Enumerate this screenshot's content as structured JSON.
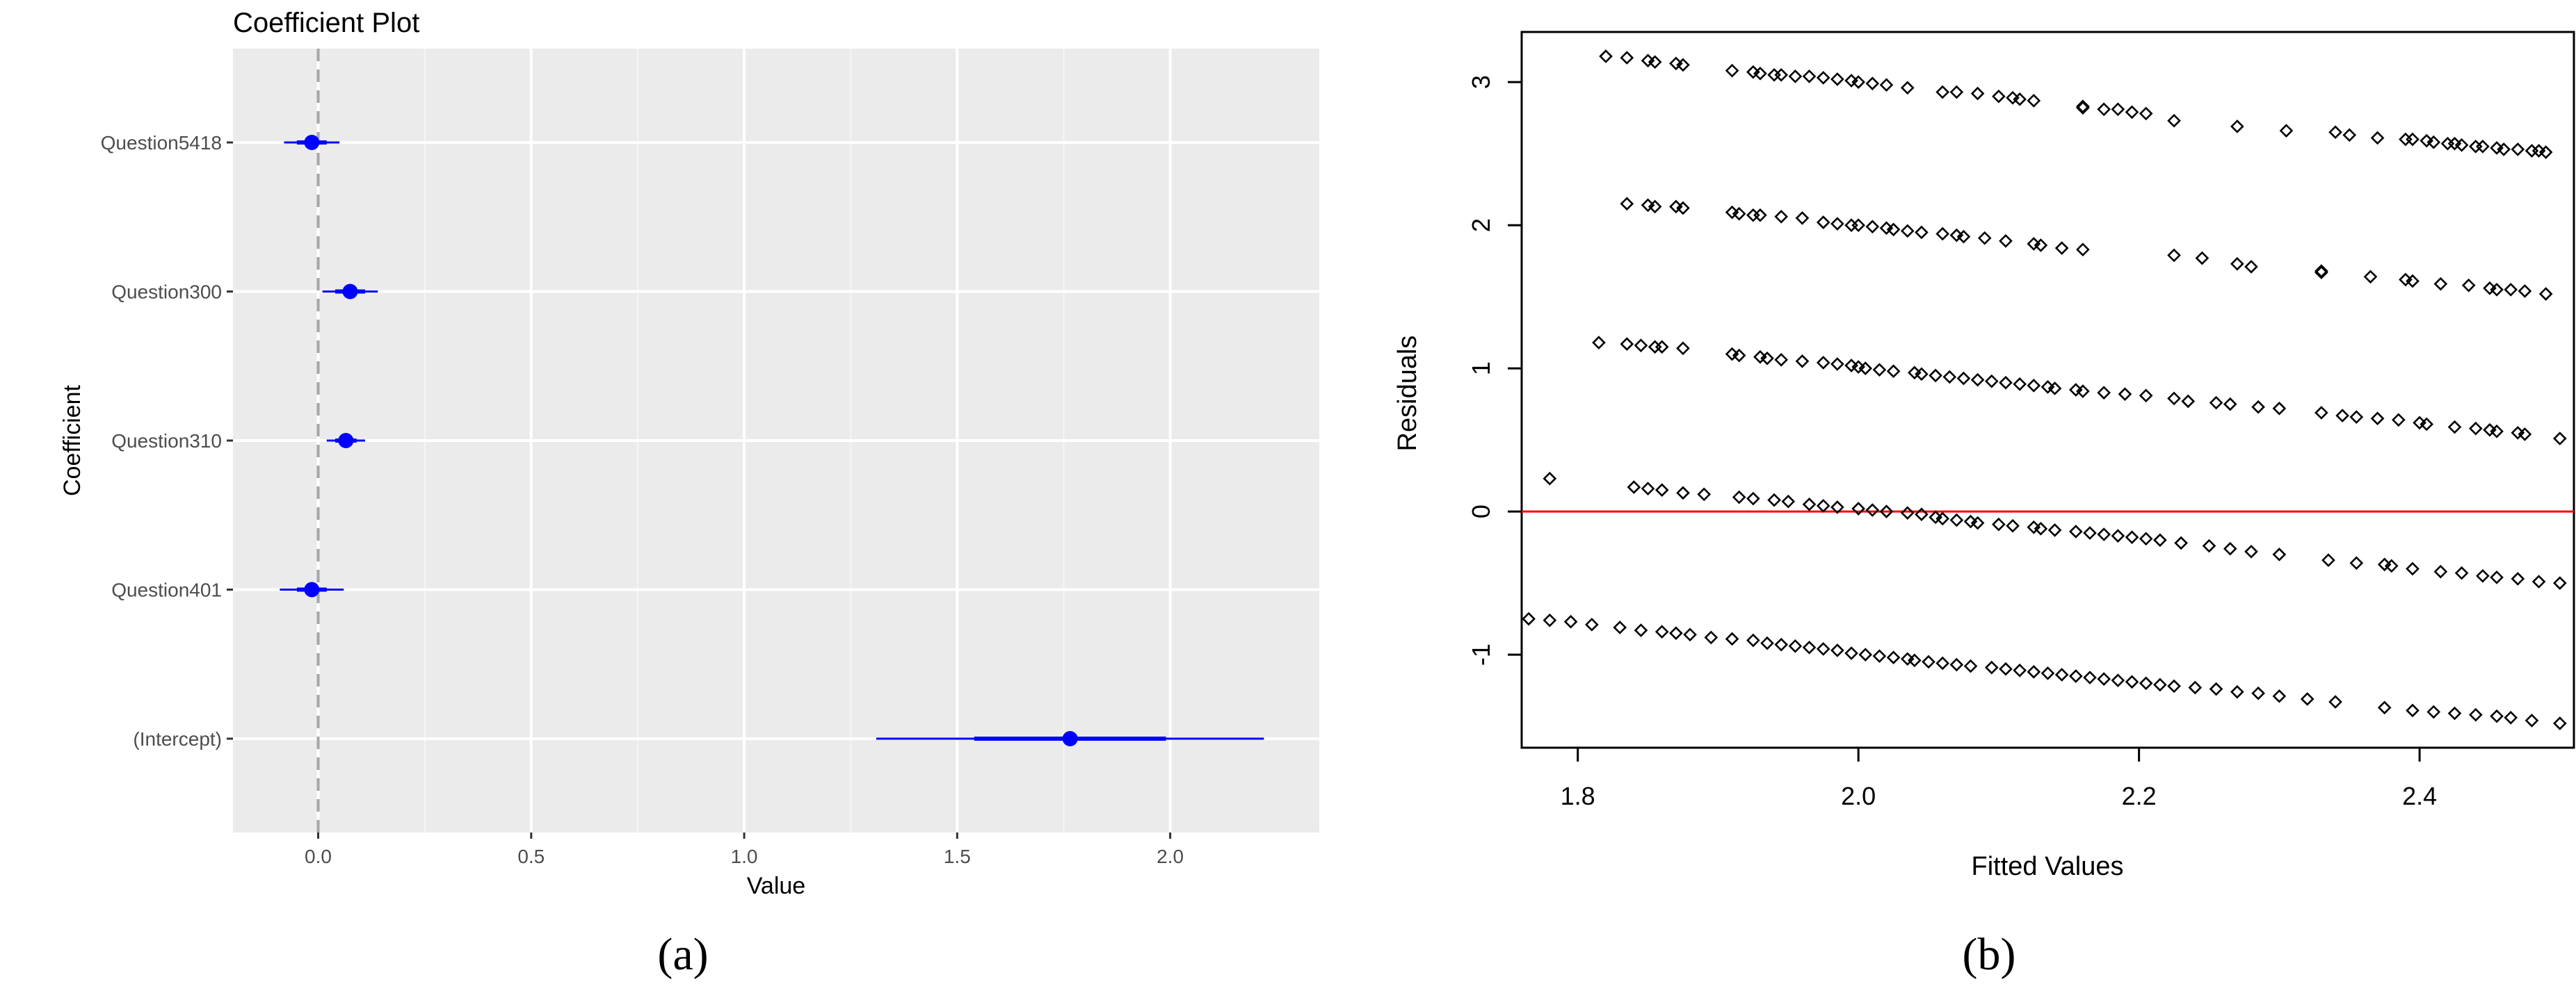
{
  "chart_data": [
    {
      "type": "coefficient",
      "title": "Coefficient Plot",
      "xlabel": "Value",
      "ylabel": "Coefficient",
      "xlim": [
        -0.2,
        2.35
      ],
      "xticks": [
        0.0,
        0.5,
        1.0,
        1.5,
        2.0
      ],
      "xtick_labels": [
        "0.0",
        "0.5",
        "1.0",
        "1.5",
        "2.0"
      ],
      "reference_line": 0,
      "grid": true,
      "coefficients": [
        {
          "name": "Question5418",
          "estimate": -0.015,
          "inner": [
            -0.05,
            0.02
          ],
          "outer": [
            -0.08,
            0.05
          ]
        },
        {
          "name": "Question300",
          "estimate": 0.075,
          "inner": [
            0.04,
            0.11
          ],
          "outer": [
            0.01,
            0.14
          ]
        },
        {
          "name": "Question310",
          "estimate": 0.065,
          "inner": [
            0.04,
            0.09
          ],
          "outer": [
            0.02,
            0.11
          ]
        },
        {
          "name": "Question401",
          "estimate": -0.015,
          "inner": [
            -0.05,
            0.02
          ],
          "outer": [
            -0.09,
            0.06
          ]
        },
        {
          "name": "(Intercept)",
          "estimate": 1.765,
          "inner": [
            1.54,
            1.99
          ],
          "outer": [
            1.31,
            2.22
          ]
        }
      ],
      "colors": {
        "points": "#0000ff",
        "background": "#ebebeb",
        "grid": "#ffffff",
        "reference": "#a6a6a6"
      },
      "panel_label": "(a)"
    },
    {
      "type": "scatter",
      "xlabel": "Fitted Values",
      "ylabel": "Residuals",
      "xlim": [
        1.76,
        2.51
      ],
      "ylim": [
        -1.65,
        3.35
      ],
      "xticks": [
        1.8,
        2.0,
        2.2,
        2.4
      ],
      "xtick_labels": [
        "1.8",
        "2.0",
        "2.2",
        "2.4"
      ],
      "yticks": [
        -1,
        0,
        1,
        2,
        3
      ],
      "ytick_labels": [
        "-1",
        "0",
        "1",
        "2",
        "3"
      ],
      "reference_line": 0,
      "marker": "diamond",
      "colors": {
        "points": "#000000",
        "reference": "#ff0000"
      },
      "bands": [
        {
          "x": [
            1.82,
            1.835,
            1.85,
            1.855,
            1.87,
            1.875,
            1.91,
            1.925,
            1.93,
            1.94,
            1.945,
            1.955,
            1.965,
            1.975,
            1.985,
            1.995,
            2.0,
            2.01,
            2.02,
            2.035,
            2.06,
            2.07,
            2.085,
            2.1,
            2.11,
            2.115,
            2.125,
            2.16,
            2.16,
            2.175,
            2.185,
            2.195,
            2.205,
            2.225,
            2.27,
            2.305,
            2.34,
            2.35,
            2.37,
            2.39,
            2.395,
            2.405,
            2.41,
            2.42,
            2.425,
            2.43,
            2.44,
            2.445,
            2.455,
            2.46,
            2.47,
            2.48,
            2.485,
            2.49
          ],
          "y": [
            3.18,
            3.17,
            3.15,
            3.14,
            3.13,
            3.12,
            3.08,
            3.07,
            3.06,
            3.05,
            3.05,
            3.04,
            3.04,
            3.03,
            3.02,
            3.01,
            3.0,
            2.99,
            2.98,
            2.96,
            2.93,
            2.93,
            2.92,
            2.9,
            2.89,
            2.88,
            2.87,
            2.83,
            2.82,
            2.81,
            2.81,
            2.79,
            2.78,
            2.73,
            2.69,
            2.66,
            2.65,
            2.63,
            2.61,
            2.6,
            2.6,
            2.59,
            2.58,
            2.57,
            2.57,
            2.56,
            2.55,
            2.55,
            2.54,
            2.53,
            2.53,
            2.52,
            2.52,
            2.51
          ]
        },
        {
          "x": [
            1.835,
            1.85,
            1.855,
            1.87,
            1.875,
            1.91,
            1.915,
            1.925,
            1.93,
            1.945,
            1.96,
            1.975,
            1.985,
            1.995,
            2.0,
            2.01,
            2.02,
            2.025,
            2.035,
            2.045,
            2.06,
            2.07,
            2.075,
            2.09,
            2.105,
            2.125,
            2.13,
            2.145,
            2.16,
            2.225,
            2.245,
            2.27,
            2.28,
            2.33,
            2.33,
            2.365,
            2.39,
            2.395,
            2.415,
            2.435,
            2.45,
            2.455,
            2.465,
            2.475,
            2.49
          ],
          "y": [
            2.15,
            2.14,
            2.13,
            2.13,
            2.12,
            2.09,
            2.08,
            2.07,
            2.07,
            2.06,
            2.05,
            2.02,
            2.01,
            2.0,
            2.0,
            1.99,
            1.98,
            1.97,
            1.96,
            1.95,
            1.94,
            1.93,
            1.92,
            1.91,
            1.89,
            1.87,
            1.86,
            1.84,
            1.83,
            1.79,
            1.77,
            1.73,
            1.71,
            1.68,
            1.67,
            1.64,
            1.62,
            1.61,
            1.59,
            1.58,
            1.56,
            1.55,
            1.55,
            1.54,
            1.52
          ]
        },
        {
          "x": [
            1.815,
            1.835,
            1.845,
            1.855,
            1.86,
            1.875,
            1.91,
            1.915,
            1.93,
            1.935,
            1.945,
            1.96,
            1.975,
            1.985,
            1.995,
            2.0,
            2.005,
            2.015,
            2.025,
            2.04,
            2.045,
            2.055,
            2.065,
            2.075,
            2.085,
            2.095,
            2.105,
            2.115,
            2.125,
            2.135,
            2.14,
            2.155,
            2.16,
            2.175,
            2.19,
            2.205,
            2.225,
            2.235,
            2.255,
            2.265,
            2.285,
            2.3,
            2.33,
            2.345,
            2.355,
            2.37,
            2.385,
            2.4,
            2.405,
            2.425,
            2.44,
            2.45,
            2.455,
            2.47,
            2.475,
            2.5
          ],
          "y": [
            1.18,
            1.17,
            1.16,
            1.15,
            1.15,
            1.14,
            1.1,
            1.09,
            1.08,
            1.07,
            1.06,
            1.05,
            1.04,
            1.03,
            1.02,
            1.01,
            1.0,
            0.99,
            0.98,
            0.97,
            0.96,
            0.95,
            0.94,
            0.93,
            0.92,
            0.91,
            0.9,
            0.89,
            0.88,
            0.87,
            0.86,
            0.85,
            0.84,
            0.83,
            0.82,
            0.81,
            0.79,
            0.77,
            0.76,
            0.75,
            0.73,
            0.72,
            0.69,
            0.67,
            0.66,
            0.65,
            0.64,
            0.62,
            0.61,
            0.59,
            0.58,
            0.57,
            0.56,
            0.55,
            0.54,
            0.51
          ]
        },
        {
          "x": [
            1.78,
            1.84,
            1.85,
            1.86,
            1.875,
            1.89,
            1.915,
            1.925,
            1.94,
            1.95,
            1.965,
            1.975,
            1.985,
            2.0,
            2.01,
            2.02,
            2.035,
            2.045,
            2.055,
            2.06,
            2.07,
            2.08,
            2.085,
            2.1,
            2.11,
            2.125,
            2.13,
            2.14,
            2.155,
            2.165,
            2.175,
            2.185,
            2.195,
            2.205,
            2.215,
            2.23,
            2.25,
            2.265,
            2.28,
            2.3,
            2.335,
            2.355,
            2.375,
            2.38,
            2.395,
            2.415,
            2.43,
            2.445,
            2.455,
            2.47,
            2.485,
            2.5
          ],
          "y": [
            0.23,
            0.17,
            0.16,
            0.15,
            0.13,
            0.12,
            0.1,
            0.09,
            0.08,
            0.07,
            0.05,
            0.04,
            0.03,
            0.02,
            0.01,
            0.0,
            -0.01,
            -0.02,
            -0.04,
            -0.05,
            -0.06,
            -0.07,
            -0.08,
            -0.09,
            -0.1,
            -0.11,
            -0.12,
            -0.13,
            -0.14,
            -0.15,
            -0.16,
            -0.17,
            -0.18,
            -0.19,
            -0.2,
            -0.22,
            -0.24,
            -0.26,
            -0.28,
            -0.3,
            -0.34,
            -0.36,
            -0.37,
            -0.38,
            -0.4,
            -0.42,
            -0.43,
            -0.45,
            -0.46,
            -0.47,
            -0.49,
            -0.5
          ]
        },
        {
          "x": [
            1.765,
            1.78,
            1.795,
            1.81,
            1.83,
            1.845,
            1.86,
            1.87,
            1.88,
            1.895,
            1.91,
            1.925,
            1.935,
            1.945,
            1.955,
            1.965,
            1.975,
            1.985,
            1.995,
            2.005,
            2.015,
            2.025,
            2.035,
            2.04,
            2.05,
            2.06,
            2.07,
            2.08,
            2.095,
            2.105,
            2.115,
            2.125,
            2.135,
            2.145,
            2.155,
            2.165,
            2.175,
            2.185,
            2.195,
            2.205,
            2.215,
            2.225,
            2.24,
            2.255,
            2.27,
            2.285,
            2.3,
            2.32,
            2.34,
            2.375,
            2.395,
            2.41,
            2.425,
            2.44,
            2.455,
            2.465,
            2.48,
            2.5
          ],
          "y": [
            -0.75,
            -0.76,
            -0.77,
            -0.79,
            -0.81,
            -0.83,
            -0.84,
            -0.85,
            -0.86,
            -0.88,
            -0.89,
            -0.9,
            -0.92,
            -0.93,
            -0.94,
            -0.95,
            -0.96,
            -0.97,
            -0.99,
            -1.0,
            -1.01,
            -1.02,
            -1.03,
            -1.04,
            -1.05,
            -1.06,
            -1.07,
            -1.08,
            -1.09,
            -1.1,
            -1.11,
            -1.12,
            -1.13,
            -1.14,
            -1.15,
            -1.16,
            -1.17,
            -1.18,
            -1.19,
            -1.2,
            -1.21,
            -1.22,
            -1.23,
            -1.24,
            -1.26,
            -1.27,
            -1.29,
            -1.31,
            -1.33,
            -1.37,
            -1.39,
            -1.4,
            -1.41,
            -1.42,
            -1.43,
            -1.44,
            -1.46,
            -1.48
          ]
        }
      ],
      "panel_label": "(b)"
    }
  ]
}
